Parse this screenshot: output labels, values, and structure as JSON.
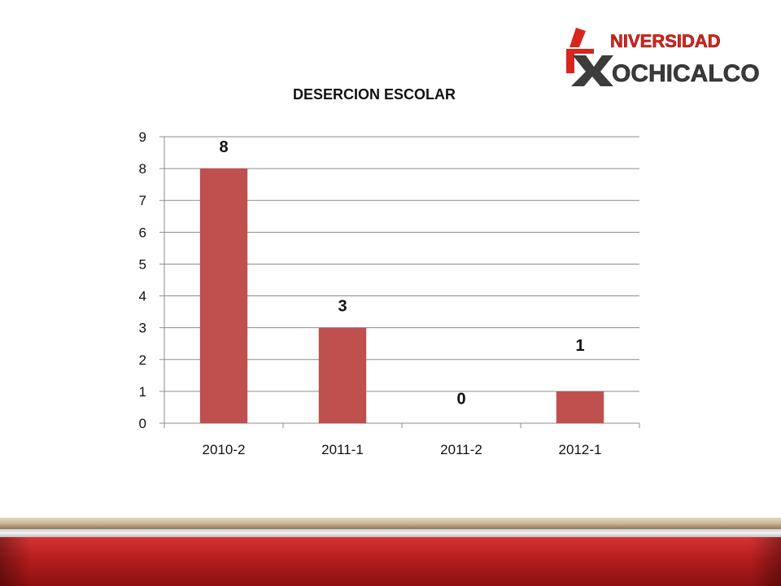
{
  "logo": {
    "line1": "NIVERSIDAD",
    "line2": "OCHICALCO",
    "letter_u": "U",
    "letter_x": "X",
    "colors": {
      "red": "#d8261e",
      "dark": "#3c3c3c"
    }
  },
  "chart_data": {
    "type": "bar",
    "title": "DESERCION ESCOLAR",
    "categories": [
      "2010-2",
      "2011-1",
      "2011-2",
      "2012-1"
    ],
    "values": [
      8,
      3,
      0,
      1
    ],
    "data_labels": [
      "8",
      "3",
      "0",
      "1"
    ],
    "xlabel": "",
    "ylabel": "",
    "ylim": [
      0,
      9
    ],
    "yticks": [
      "0",
      "1",
      "2",
      "3",
      "4",
      "5",
      "6",
      "7",
      "8",
      "9"
    ],
    "grid": true,
    "legend": "none",
    "bar_color": "#c0504d"
  },
  "theme": {
    "footer_red": "#b51d1d",
    "footer_tan": "#c9b291"
  }
}
